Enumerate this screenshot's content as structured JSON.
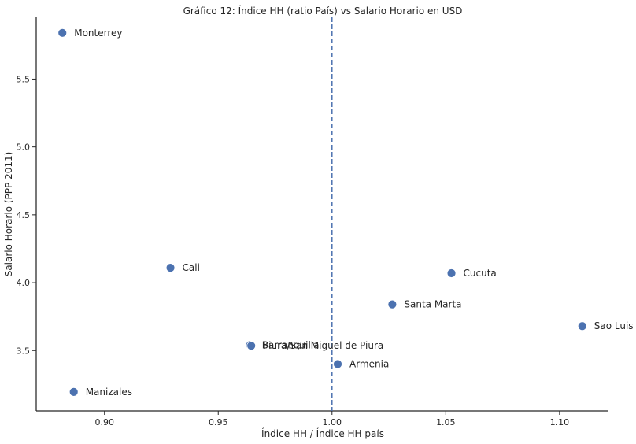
{
  "chart_data": {
    "type": "scatter",
    "title": "Gráfico 12: Índice HH (ratio País) vs Salario Horario en USD",
    "xlabel": "Índice HH / Índice HH país",
    "ylabel": "Salario Horario (PPP 2011)",
    "xlim": [
      0.87,
      1.1215
    ],
    "ylim": [
      3.055,
      5.955
    ],
    "xticks": [
      0.9,
      0.95,
      1.0,
      1.05,
      1.1
    ],
    "xtick_labels": [
      "0.90",
      "0.95",
      "1.00",
      "1.05",
      "1.10"
    ],
    "yticks": [
      3.5,
      4.0,
      4.5,
      5.0,
      5.5
    ],
    "ytick_labels": [
      "3.5",
      "4.0",
      "4.5",
      "5.0",
      "5.5"
    ],
    "grid": false,
    "reference_line": {
      "orientation": "vertical",
      "x": 1.0,
      "style": "dashed",
      "color": "#4c72b0"
    },
    "point_color": "#4c72b0",
    "points": [
      {
        "label": "Monterrey",
        "x": 0.8815,
        "y": 5.84
      },
      {
        "label": "Cali",
        "x": 0.929,
        "y": 4.11
      },
      {
        "label": "Cucuta",
        "x": 1.0525,
        "y": 4.07
      },
      {
        "label": "Santa Marta",
        "x": 1.0265,
        "y": 3.84
      },
      {
        "label": "Sao Luis",
        "x": 1.11,
        "y": 3.68
      },
      {
        "label": "Barranquilla",
        "x": 0.964,
        "y": 3.54
      },
      {
        "label": "Piura/San Miguel de Piura",
        "x": 0.9645,
        "y": 3.535
      },
      {
        "label": "Armenia",
        "x": 1.0025,
        "y": 3.4
      },
      {
        "label": "Manizales",
        "x": 0.8865,
        "y": 3.195
      }
    ]
  }
}
